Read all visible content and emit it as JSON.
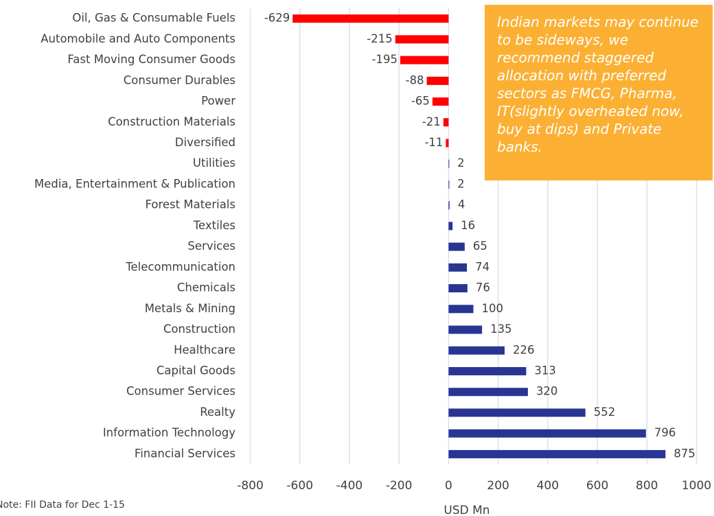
{
  "chart_data": {
    "type": "barh",
    "categories": [
      "Oil, Gas & Consumable Fuels",
      "Automobile and Auto Components",
      "Fast Moving Consumer Goods",
      "Consumer Durables",
      "Power",
      "Construction Materials",
      "Diversified",
      "Utilities",
      "Media, Entertainment & Publication",
      "Forest Materials",
      "Textiles",
      "Services",
      "Telecommunication",
      "Chemicals",
      "Metals & Mining",
      "Construction",
      "Healthcare",
      "Capital Goods",
      "Consumer Services",
      "Realty",
      "Information Technology",
      "Financial Services"
    ],
    "values": [
      -629,
      -215,
      -195,
      -88,
      -65,
      -21,
      -11,
      2,
      2,
      4,
      16,
      65,
      74,
      76,
      100,
      135,
      226,
      313,
      320,
      552,
      796,
      875
    ],
    "color": "#283593",
    "negative_color": "#ff0000",
    "xlim": [
      -800,
      1000
    ],
    "xticks": [
      -800,
      -600,
      -400,
      -200,
      0,
      200,
      400,
      600,
      800,
      1000
    ],
    "xlabel": "USD Mn",
    "grid": true,
    "annotation": "Indian markets may continue to be sideways, we recommend staggered allocation with preferred sectors as FMCG, Pharma, IT(slightly overheated now, buy at dips) and Private banks.",
    "note": "Note: FII Data for Dec 1-15"
  }
}
